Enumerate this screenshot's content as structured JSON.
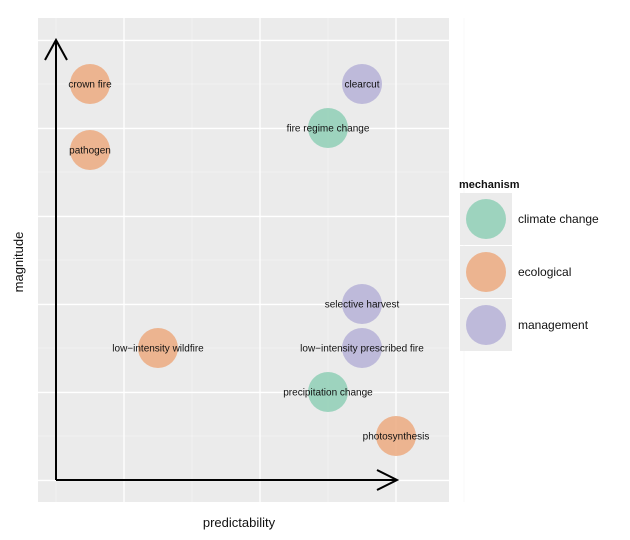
{
  "chart_data": {
    "type": "scatter",
    "xlabel": "predictability",
    "ylabel": "magnitude",
    "xlim": [
      0,
      6
    ],
    "ylim": [
      0,
      10.5
    ],
    "grid": true,
    "legend": {
      "title": "mechanism",
      "placement": "right",
      "entries": [
        {
          "name": "climate change",
          "color": "#8fcfb6"
        },
        {
          "name": "ecological",
          "color": "#ecaa80"
        },
        {
          "name": "management",
          "color": "#b6b1d7"
        }
      ]
    },
    "points": [
      {
        "label": "crown fire",
        "mechanism": "ecological",
        "x": 0.5,
        "y": 9
      },
      {
        "label": "pathogen",
        "mechanism": "ecological",
        "x": 0.5,
        "y": 7.5
      },
      {
        "label": "clearcut",
        "mechanism": "management",
        "x": 4.5,
        "y": 9
      },
      {
        "label": "fire regime change",
        "mechanism": "climate change",
        "x": 4,
        "y": 8
      },
      {
        "label": "selective harvest",
        "mechanism": "management",
        "x": 4.5,
        "y": 4
      },
      {
        "label": "low−intensity wildfire",
        "mechanism": "ecological",
        "x": 1.5,
        "y": 3
      },
      {
        "label": "low−intensity prescribed fire",
        "mechanism": "management",
        "x": 4.5,
        "y": 3
      },
      {
        "label": "precipitation change",
        "mechanism": "climate change",
        "x": 4,
        "y": 2
      },
      {
        "label": "photosynthesis",
        "mechanism": "ecological",
        "x": 5,
        "y": 1
      }
    ]
  }
}
